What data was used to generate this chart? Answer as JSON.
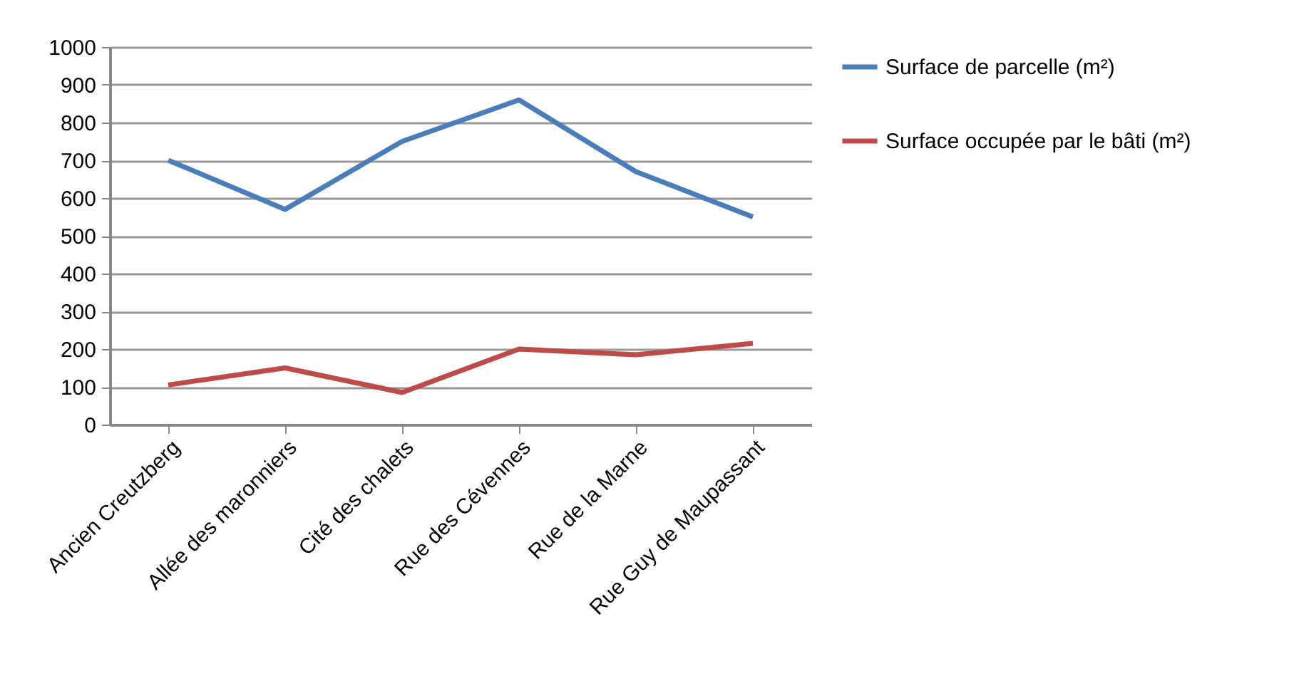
{
  "chart_data": {
    "type": "line",
    "categories": [
      "Ancien Creutzberg",
      "Allée des maronniers",
      "Cité des chalets",
      "Rue des Cévennes",
      "Rue de la Marne",
      "Rue Guy de Maupassant"
    ],
    "series": [
      {
        "name": "Surface de parcelle (m²)",
        "color": "#4a7ebb",
        "values": [
          700,
          570,
          750,
          860,
          670,
          550
        ]
      },
      {
        "name": "Surface occupée par le bâti (m²)",
        "color": "#be4b48",
        "values": [
          105,
          150,
          85,
          200,
          185,
          215
        ]
      }
    ],
    "ylim": [
      0,
      1000
    ],
    "yticks": [
      0,
      100,
      200,
      300,
      400,
      500,
      600,
      700,
      800,
      900,
      1000
    ],
    "grid": "y",
    "legend": "right",
    "marker": "none",
    "line_style": "solid"
  }
}
